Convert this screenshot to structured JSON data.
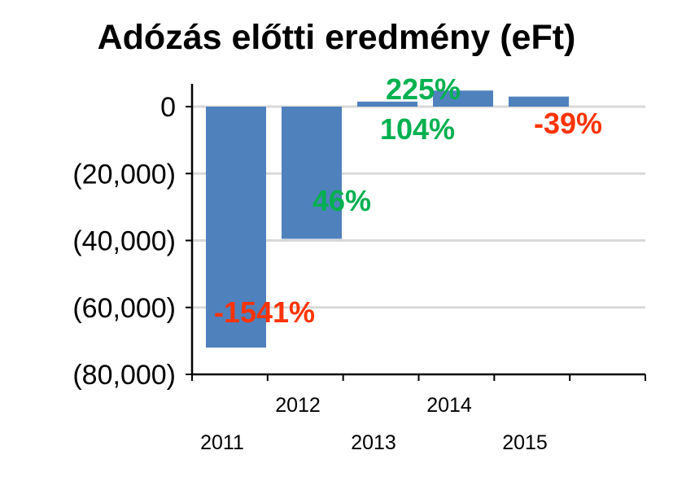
{
  "chart_data": {
    "type": "bar",
    "title": "Adózás előtti eredmény (eFt)",
    "xlabel": "",
    "ylabel": "",
    "categories": [
      "2011",
      "2012",
      "2013",
      "2014",
      "2015"
    ],
    "values": [
      -72000,
      -39500,
      1500,
      4800,
      3000
    ],
    "ylim": [
      -80000,
      5000
    ],
    "yticks": [
      0,
      -20000,
      -40000,
      -60000,
      -80000
    ],
    "ytick_labels": [
      "0",
      "(20,000)",
      "(40,000)",
      "(60,000)",
      "(80,000)"
    ],
    "grid": true,
    "bar_color": "#4f81bd",
    "annotations": [
      {
        "category": "2011",
        "text": "-1541%",
        "color": "#ff3300"
      },
      {
        "category": "2012",
        "text": "46%",
        "color": "#00b050"
      },
      {
        "category": "2013",
        "text": "104%",
        "color": "#00b050"
      },
      {
        "category": "2013",
        "text": "225%",
        "color": "#00b050"
      },
      {
        "category": "2015",
        "text": "-39%",
        "color": "#ff3300"
      }
    ]
  }
}
